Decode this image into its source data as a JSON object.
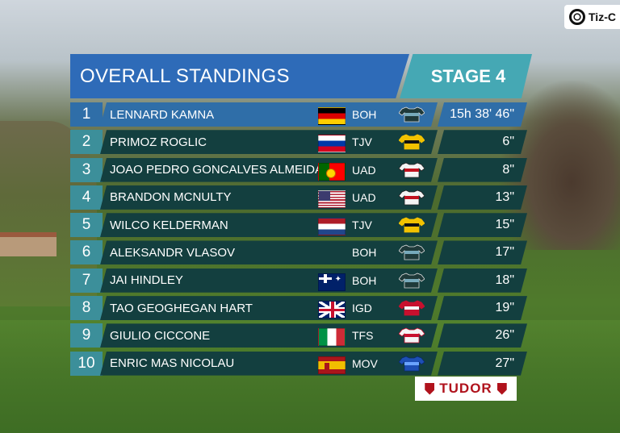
{
  "broadcaster": {
    "text": "Tiz-C"
  },
  "header": {
    "title": "OVERALL STANDINGS",
    "stage": "STAGE 4"
  },
  "standings": [
    {
      "pos": "1",
      "name": "LENNARD KAMNA",
      "flag": "germany-flag",
      "team": "BOH",
      "time": "15h 38' 46\"",
      "jersey": {
        "main": "#1f3a3a",
        "accent": "#7ab",
        "trim": "#ddd"
      }
    },
    {
      "pos": "2",
      "name": "PRIMOZ ROGLIC",
      "flag": "slovenia-flag",
      "team": "TJV",
      "time": "6\"",
      "jersey": {
        "main": "#f2c200",
        "accent": "#111",
        "trim": "#f2c200"
      }
    },
    {
      "pos": "3",
      "name": "JOAO PEDRO GONCALVES ALMEIDA",
      "flag": "portugal-flag",
      "team": "UAD",
      "time": "8\"",
      "jersey": {
        "main": "#f4f4f4",
        "accent": "#c1121f",
        "trim": "#222"
      }
    },
    {
      "pos": "4",
      "name": "BRANDON MCNULTY",
      "flag": "usa-flag",
      "team": "UAD",
      "time": "13\"",
      "jersey": {
        "main": "#f4f4f4",
        "accent": "#c1121f",
        "trim": "#222"
      }
    },
    {
      "pos": "5",
      "name": "WILCO KELDERMAN",
      "flag": "netherlands-flag",
      "team": "TJV",
      "time": "15\"",
      "jersey": {
        "main": "#f2c200",
        "accent": "#111",
        "trim": "#f2c200"
      }
    },
    {
      "pos": "6",
      "name": "ALEKSANDR VLASOV",
      "flag": "",
      "team": "BOH",
      "time": "17\"",
      "jersey": {
        "main": "#1f3a3a",
        "accent": "#7ab",
        "trim": "#ddd"
      }
    },
    {
      "pos": "7",
      "name": "JAI HINDLEY",
      "flag": "australia-flag",
      "team": "BOH",
      "time": "18\"",
      "jersey": {
        "main": "#1f3a3a",
        "accent": "#7ab",
        "trim": "#ddd"
      }
    },
    {
      "pos": "8",
      "name": "TAO GEOGHEGAN HART",
      "flag": "great-britain-flag",
      "team": "IGD",
      "time": "19\"",
      "jersey": {
        "main": "#c8102e",
        "accent": "#f5f5f5",
        "trim": "#c8102e"
      }
    },
    {
      "pos": "9",
      "name": "GIULIO CICCONE",
      "flag": "italy-flag",
      "team": "TFS",
      "time": "26\"",
      "jersey": {
        "main": "#f4f4f4",
        "accent": "#c8102e",
        "trim": "#c8102e"
      }
    },
    {
      "pos": "10",
      "name": "ENRIC MAS NICOLAU",
      "flag": "spain-flag",
      "team": "MOV",
      "time": "27\"",
      "jersey": {
        "main": "#1d4fb5",
        "accent": "#6aa3ff",
        "trim": "#0a2a6a"
      }
    }
  ],
  "sponsor": {
    "text": "TUDOR"
  }
}
